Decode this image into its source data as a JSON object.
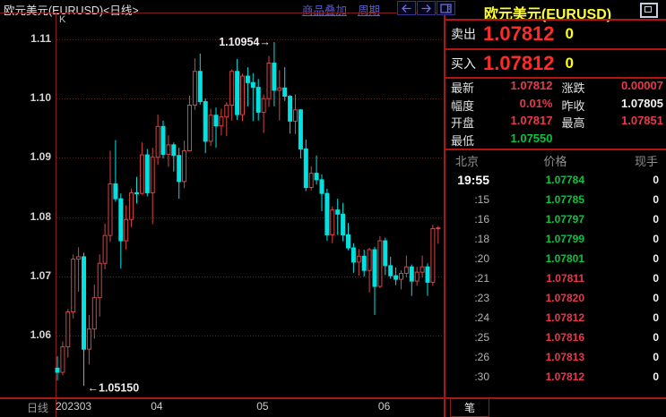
{
  "window": {
    "title": "欧元美元(EURUSD)<日线>",
    "toolbar": {
      "overlay_label": "商品叠加",
      "period_label": "周期",
      "buttons": [
        "prev-arrow",
        "next-arrow",
        "layout"
      ]
    },
    "period_label": "日线"
  },
  "chart_data": {
    "type": "candlestick",
    "title": "EURUSD daily candlestick chart",
    "indicator_label": "K",
    "legend_position": "none",
    "grid": "dotted-horizontal",
    "y_ticks": [
      "1.11",
      "1.10",
      "1.09",
      "1.08",
      "1.07",
      "1.06"
    ],
    "ylim": [
      1.0495,
      1.1145
    ],
    "x_labels": [
      {
        "label": "202303",
        "index": 0
      },
      {
        "label": "04",
        "index": 18
      },
      {
        "label": "05",
        "index": 38
      },
      {
        "label": "06",
        "index": 61
      }
    ],
    "annotations": {
      "high": {
        "text": "1.10954→",
        "value": 1.10954,
        "index": 41,
        "side": "left"
      },
      "low": {
        "text": "←1.05150",
        "value": 1.0515,
        "index": 5,
        "side": "right"
      }
    },
    "colors": {
      "up": "#d94343",
      "down": "#00e2e2",
      "grid": "#5e2121",
      "axis": "#8a1b1b"
    },
    "candles": [
      [
        "03-08",
        1.0545,
        1.0565,
        1.0524,
        1.0538
      ],
      [
        "03-09",
        1.0538,
        1.059,
        1.0533,
        1.0581
      ],
      [
        "03-10",
        1.0581,
        1.0645,
        1.0563,
        1.064
      ],
      [
        "03-13",
        1.064,
        1.0737,
        1.0629,
        1.0729
      ],
      [
        "03-14",
        1.0729,
        1.0749,
        1.0674,
        1.0733
      ],
      [
        "03-15",
        1.0733,
        1.074,
        1.0515,
        1.0577
      ],
      [
        "03-16",
        1.0577,
        1.0635,
        1.0551,
        1.0611
      ],
      [
        "03-17",
        1.0611,
        1.0686,
        1.0595,
        1.0664
      ],
      [
        "03-20",
        1.0664,
        1.0737,
        1.0632,
        1.0722
      ],
      [
        "03-21",
        1.0722,
        1.0789,
        1.0712,
        1.0769
      ],
      [
        "03-22",
        1.0769,
        1.0912,
        1.0758,
        1.0856
      ],
      [
        "03-23",
        1.0856,
        1.093,
        1.0826,
        1.0831
      ],
      [
        "03-24",
        1.0831,
        1.084,
        1.0713,
        1.076
      ],
      [
        "03-27",
        1.076,
        1.082,
        1.0745,
        1.0796
      ],
      [
        "03-28",
        1.0796,
        1.0848,
        1.0783,
        1.0841
      ],
      [
        "03-29",
        1.0841,
        1.0868,
        1.0823,
        1.084
      ],
      [
        "03-30",
        1.084,
        1.0926,
        1.0838,
        1.0905
      ],
      [
        "03-31",
        1.0905,
        1.0915,
        1.0835,
        1.0841
      ],
      [
        "04-03",
        1.0841,
        1.0917,
        1.0788,
        1.0901
      ],
      [
        "04-04",
        1.0901,
        1.0973,
        1.0888,
        1.0953
      ],
      [
        "04-05",
        1.0953,
        1.0963,
        1.0899,
        1.0906
      ],
      [
        "04-06",
        1.0906,
        1.0938,
        1.0885,
        1.0922
      ],
      [
        "04-07",
        1.0922,
        1.0926,
        1.0877,
        1.0904
      ],
      [
        "04-10",
        1.0904,
        1.0917,
        1.0831,
        1.086
      ],
      [
        "04-11",
        1.086,
        1.0929,
        1.0849,
        1.0912
      ],
      [
        "04-12",
        1.0912,
        1.1005,
        1.0911,
        1.0989
      ],
      [
        "04-13",
        1.0989,
        1.1068,
        1.0981,
        1.1046
      ],
      [
        "04-14",
        1.1046,
        1.1076,
        1.099,
        1.0995
      ],
      [
        "04-17",
        1.0995,
        1.1,
        1.0908,
        1.0928
      ],
      [
        "04-18",
        1.0928,
        1.0983,
        1.092,
        1.0972
      ],
      [
        "04-19",
        1.0972,
        1.0985,
        1.0917,
        1.0954
      ],
      [
        "04-20",
        1.0954,
        1.0983,
        1.0938,
        1.0969
      ],
      [
        "04-21",
        1.0969,
        1.0994,
        1.0937,
        1.0989
      ],
      [
        "04-24",
        1.0989,
        1.1049,
        1.0963,
        1.1046
      ],
      [
        "04-25",
        1.1046,
        1.1067,
        1.0964,
        1.0973
      ],
      [
        "04-26",
        1.0973,
        1.1042,
        1.0962,
        1.1038
      ],
      [
        "04-27",
        1.1038,
        1.1053,
        1.0987,
        1.1027
      ],
      [
        "04-28",
        1.1027,
        1.1043,
        1.0962,
        1.1019
      ],
      [
        "05-01",
        1.1019,
        1.1033,
        1.0963,
        1.0977
      ],
      [
        "05-02",
        1.0977,
        1.1007,
        1.0942,
        1.1
      ],
      [
        "05-03",
        1.1,
        1.1072,
        1.0986,
        1.106
      ],
      [
        "05-04",
        1.106,
        1.10954,
        1.0987,
        1.1014
      ],
      [
        "05-05",
        1.1014,
        1.1048,
        1.0963,
        1.1018
      ],
      [
        "05-08",
        1.1018,
        1.1053,
        1.0996,
        1.1004
      ],
      [
        "05-09",
        1.1004,
        1.1006,
        1.0941,
        1.0962
      ],
      [
        "05-10",
        1.0962,
        1.1007,
        1.094,
        1.0981
      ],
      [
        "05-11",
        1.0981,
        1.0982,
        1.0899,
        1.0915
      ],
      [
        "05-12",
        1.0915,
        1.0931,
        1.0844,
        1.085
      ],
      [
        "05-15",
        1.085,
        1.0886,
        1.0845,
        1.0874
      ],
      [
        "05-16",
        1.0874,
        1.0904,
        1.0855,
        1.0863
      ],
      [
        "05-17",
        1.0863,
        1.0872,
        1.081,
        1.084
      ],
      [
        "05-18",
        1.084,
        1.0848,
        1.076,
        1.077
      ],
      [
        "05-19",
        1.077,
        1.0818,
        1.0756,
        1.0812
      ],
      [
        "05-22",
        1.0812,
        1.0831,
        1.077,
        1.0805
      ],
      [
        "05-23",
        1.0805,
        1.0824,
        1.0759,
        1.077
      ],
      [
        "05-24",
        1.077,
        1.079,
        1.0744,
        1.0748
      ],
      [
        "05-25",
        1.0748,
        1.0756,
        1.0706,
        1.0724
      ],
      [
        "05-26",
        1.0724,
        1.0746,
        1.0701,
        1.0734
      ],
      [
        "05-29",
        1.0734,
        1.0745,
        1.07,
        1.071
      ],
      [
        "05-30",
        1.071,
        1.0748,
        1.0673,
        1.0745
      ],
      [
        "05-31",
        1.0745,
        1.075,
        1.0635,
        1.0683
      ],
      [
        "06-01",
        1.0683,
        1.0768,
        1.068,
        1.076
      ],
      [
        "06-02",
        1.076,
        1.0765,
        1.0702,
        1.0718
      ],
      [
        "06-05",
        1.0718,
        1.0733,
        1.0696,
        1.0701
      ],
      [
        "06-06",
        1.0701,
        1.0715,
        1.0685,
        1.0695
      ],
      [
        "06-07",
        1.0695,
        1.071,
        1.0678,
        1.0705
      ],
      [
        "06-08",
        1.0705,
        1.0735,
        1.0698,
        1.0716
      ],
      [
        "06-09",
        1.0716,
        1.072,
        1.0667,
        1.0692
      ],
      [
        "06-12",
        1.0692,
        1.0716,
        1.0684,
        1.0707
      ],
      [
        "06-13",
        1.0707,
        1.0735,
        1.0698,
        1.0716
      ],
      [
        "06-14",
        1.0716,
        1.0722,
        1.0667,
        1.069
      ],
      [
        "06-15",
        1.069,
        1.0787,
        1.0684,
        1.07805
      ],
      [
        "06-16",
        1.07817,
        1.07851,
        1.0755,
        1.07812,
        "u"
      ]
    ]
  },
  "quote_panel": {
    "title": "欧元美元(EURUSD)",
    "sell": {
      "label": "卖出",
      "price": "1.07812",
      "size": "0"
    },
    "buy": {
      "label": "买入",
      "price": "1.07812",
      "size": "0"
    },
    "stats_rows": [
      [
        {
          "label": "最新",
          "value": "1.07812",
          "color": "red"
        },
        {
          "label": "涨跌",
          "value": "0.00007",
          "color": "red"
        }
      ],
      [
        {
          "label": "幅度",
          "value": "0.01%",
          "color": "red"
        },
        {
          "label": "昨收",
          "value": "1.07805",
          "color": "white"
        }
      ],
      [
        {
          "label": "开盘",
          "value": "1.07817",
          "color": "red"
        },
        {
          "label": "最高",
          "value": "1.07851",
          "color": "red"
        }
      ],
      [
        {
          "label": "最低",
          "value": "1.07550",
          "color": "green"
        }
      ]
    ],
    "tick_table": {
      "headers": [
        "北京",
        "价格",
        "现手"
      ],
      "rows": [
        {
          "time": "19:55",
          "price": "1.07784",
          "color": "green",
          "vol": "0"
        },
        {
          "time": ":15",
          "price": "1.07785",
          "color": "green",
          "vol": "0"
        },
        {
          "time": ":16",
          "price": "1.07797",
          "color": "green",
          "vol": "0"
        },
        {
          "time": ":18",
          "price": "1.07799",
          "color": "green",
          "vol": "0"
        },
        {
          "time": ":20",
          "price": "1.07801",
          "color": "green",
          "vol": "0"
        },
        {
          "time": ":21",
          "price": "1.07811",
          "color": "red",
          "vol": "0"
        },
        {
          "time": ":23",
          "price": "1.07820",
          "color": "red",
          "vol": "0"
        },
        {
          "time": ":24",
          "price": "1.07812",
          "color": "red",
          "vol": "0"
        },
        {
          "time": ":25",
          "price": "1.07816",
          "color": "red",
          "vol": "0"
        },
        {
          "time": ":26",
          "price": "1.07813",
          "color": "red",
          "vol": "0"
        },
        {
          "time": ":30",
          "price": "1.07812",
          "color": "red",
          "vol": "0"
        }
      ]
    },
    "tab_label": "笔"
  }
}
